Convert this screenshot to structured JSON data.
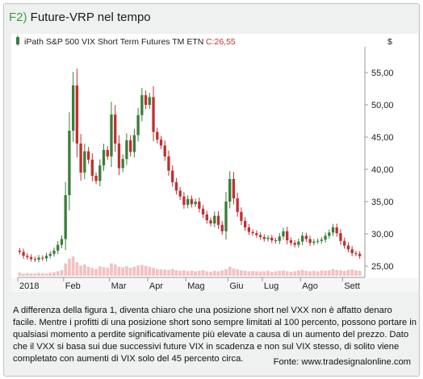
{
  "header": {
    "fig_label": "F2)",
    "title": "Future-VRP nel tempo"
  },
  "legend": {
    "series": "iPath S&P 500 VIX Short Term Futures TM ETN",
    "last": "C:26,55"
  },
  "colors": {
    "up": "#3a7d3a",
    "down": "#c03030",
    "accent": "#3f9a3f",
    "volume": "#f2c2c2"
  },
  "caption": "A differenza della figura 1, diventa chiaro che una posizione short nel VXX non è affatto denaro facile. Mentre i profitti di una posizione short sono sempre limitati al 100 percento, possono portare in qualsiasi momento a perdite significativamente più elevate a causa di un aumento del prezzo. Dato che il VXX si basa sui due successivi future VIX in scadenza e non sul VIX stesso, di solito viene completato con aumenti di VIX solo del 45 percento circa.",
  "source": "Fonte: www.tradesignalonline.com",
  "chart_data": {
    "type": "candlestick",
    "series_name": "iPath S&P 500 VIX Short Term Futures TM ETN",
    "y_unit": "$",
    "ylim": [
      23.5,
      58.5
    ],
    "y_ticks": [
      "25,00",
      "30,00",
      "35,00",
      "40,00",
      "45,00",
      "50,00",
      "55,00"
    ],
    "y_tick_values": [
      25,
      30,
      35,
      40,
      45,
      50,
      55
    ],
    "x_labels": [
      "2018",
      "Feb",
      "Mar",
      "Apr",
      "Mag",
      "Giu",
      "Lug",
      "Ago",
      "Sett"
    ],
    "x_label_index": [
      0,
      12,
      24,
      34,
      44,
      55,
      64,
      74,
      85
    ],
    "closes": [
      27.2,
      26.6,
      26.4,
      26.1,
      26.0,
      26.3,
      26.2,
      26.6,
      26.9,
      27.4,
      28.3,
      29.2,
      36.0,
      46.0,
      53.0,
      44.0,
      39.5,
      42.8,
      41.5,
      39.0,
      38.2,
      40.6,
      43.0,
      42.0,
      48.5,
      44.0,
      40.2,
      41.6,
      44.5,
      42.7,
      45.3,
      48.4,
      51.5,
      50.0,
      51.2,
      45.8,
      44.6,
      43.7,
      42.0,
      39.8,
      38.0,
      36.7,
      35.8,
      34.5,
      35.4,
      34.6,
      35.0,
      33.9,
      33.0,
      32.1,
      31.6,
      32.8,
      31.4,
      30.4,
      35.0,
      38.5,
      35.5,
      33.4,
      32.0,
      31.0,
      30.3,
      30.1,
      29.8,
      29.5,
      29.2,
      29.4,
      29.0,
      28.9,
      29.6,
      30.4,
      29.0,
      28.6,
      28.3,
      28.8,
      29.7,
      29.2,
      28.6,
      28.8,
      28.9,
      29.1,
      29.7,
      30.2,
      31.0,
      30.1,
      28.9,
      28.2,
      27.6,
      27.0,
      26.9,
      26.55
    ],
    "volume": [
      0.15,
      0.1,
      0.12,
      0.1,
      0.11,
      0.13,
      0.12,
      0.1,
      0.14,
      0.16,
      0.2,
      0.25,
      0.55,
      0.75,
      0.85,
      0.6,
      0.45,
      0.5,
      0.4,
      0.35,
      0.3,
      0.42,
      0.38,
      0.36,
      0.55,
      0.5,
      0.4,
      0.38,
      0.42,
      0.36,
      0.4,
      0.45,
      0.48,
      0.44,
      0.4,
      0.35,
      0.3,
      0.28,
      0.27,
      0.26,
      0.3,
      0.25,
      0.22,
      0.24,
      0.21,
      0.22,
      0.2,
      0.22,
      0.25,
      0.2,
      0.18,
      0.22,
      0.2,
      0.24,
      0.3,
      0.4,
      0.32,
      0.28,
      0.24,
      0.22,
      0.2,
      0.21,
      0.2,
      0.19,
      0.2,
      0.22,
      0.18,
      0.2,
      0.22,
      0.24,
      0.2,
      0.18,
      0.2,
      0.24,
      0.26,
      0.22,
      0.2,
      0.22,
      0.2,
      0.24,
      0.22,
      0.24,
      0.3,
      0.26,
      0.24,
      0.22,
      0.26,
      0.28,
      0.24,
      0.22
    ]
  }
}
